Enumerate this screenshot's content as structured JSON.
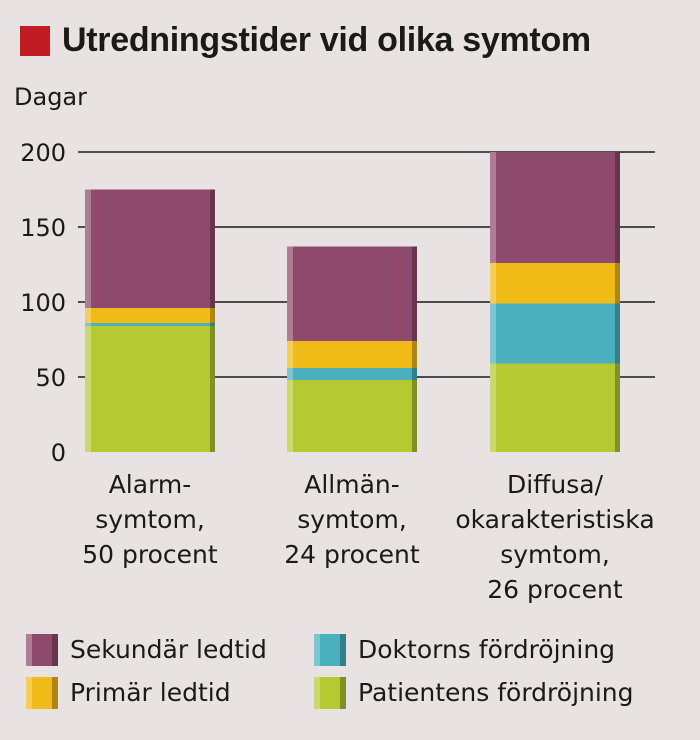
{
  "chart_data": {
    "type": "bar",
    "stacked": true,
    "title": "Utredningstider vid olika symtom",
    "ylabel": "Dagar",
    "xlabel": "",
    "ylim": [
      0,
      200
    ],
    "yticks": [
      0,
      50,
      100,
      150,
      200
    ],
    "grid": true,
    "categories": [
      "Alarm-\nsymtom,\n50 procent",
      "Allmän-\nsymtom,\n24 procent",
      "Diffusa/\nokarakteristiska\nsymtom,\n26 procent"
    ],
    "series": [
      {
        "name": "Patientens fördröjning",
        "color": "#b5c933",
        "values": [
          84,
          48,
          59
        ]
      },
      {
        "name": "Doktorns fördröjning",
        "color": "#4ab0bd",
        "values": [
          2,
          8,
          40
        ]
      },
      {
        "name": "Primär ledtid",
        "color": "#f0bb17",
        "values": [
          10,
          18,
          27
        ]
      },
      {
        "name": "Sekundär ledtid",
        "color": "#8e4a6c",
        "values": [
          79,
          63,
          74
        ]
      }
    ],
    "legend": [
      {
        "name": "Sekundär ledtid",
        "color": "#8e4a6c"
      },
      {
        "name": "Doktorns fördröjning",
        "color": "#4ab0bd"
      },
      {
        "name": "Primär ledtid",
        "color": "#f0bb17"
      },
      {
        "name": "Patientens fördröjning",
        "color": "#b5c933"
      }
    ],
    "legend_placement": "bottom",
    "title_marker_color": "#c11b24"
  }
}
